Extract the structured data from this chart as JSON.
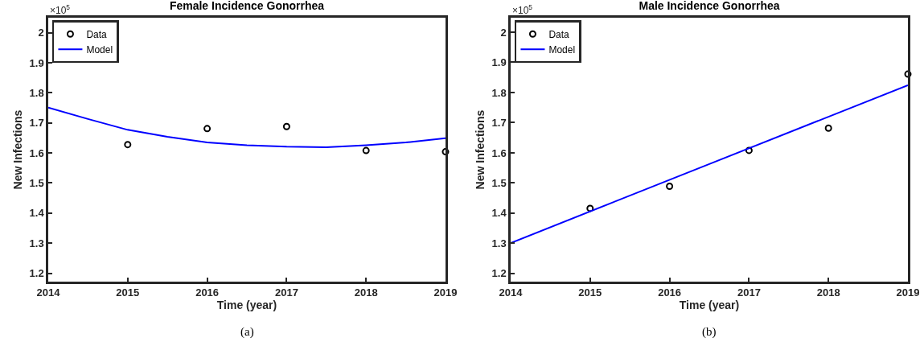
{
  "chart_data": [
    {
      "type": "scatter",
      "title": "Female Incidence Gonorrhea",
      "xlabel": "Time (year)",
      "ylabel": "New Infections",
      "annotations": [
        "×10$^{5}$",
        "(a)"
      ],
      "xlim": [
        2014,
        2019
      ],
      "xticks": [
        2014,
        2015,
        2016,
        2017,
        2018,
        2019
      ],
      "ylim": [
        1.172,
        2.05
      ],
      "yticks": [
        1.2,
        1.3,
        1.4,
        1.5,
        1.6,
        1.7,
        1.8,
        1.9,
        2
      ],
      "grid": false,
      "legend": "top left",
      "series": [
        {
          "name": "Data",
          "type": "scatter",
          "marker": "circle",
          "color": "#000000",
          "x": [
            2015,
            2016,
            2017,
            2018,
            2019
          ],
          "values": [
            1.628,
            1.681,
            1.688,
            1.608,
            1.604
          ]
        },
        {
          "name": "Model",
          "type": "line",
          "marker": "none",
          "line_style": "solid",
          "color": "#0000ff",
          "x": [
            2014,
            2014.5,
            2015,
            2015.5,
            2016,
            2016.5,
            2017,
            2017.5,
            2018,
            2018.5,
            2019
          ],
          "values": [
            1.751,
            1.713,
            1.677,
            1.654,
            1.635,
            1.626,
            1.621,
            1.619,
            1.626,
            1.635,
            1.649
          ]
        }
      ]
    },
    {
      "type": "scatter",
      "title": "Male Incidence Gonorrhea",
      "xlabel": "Time (year)",
      "ylabel": "New Infections",
      "annotations": [
        "×10$^{5}$",
        "(b)"
      ],
      "xlim": [
        2014,
        2019
      ],
      "xticks": [
        2014,
        2015,
        2016,
        2017,
        2018,
        2019
      ],
      "ylim": [
        1.173,
        2.048
      ],
      "yticks": [
        1.2,
        1.3,
        1.4,
        1.5,
        1.6,
        1.7,
        1.8,
        1.9,
        2
      ],
      "grid": false,
      "legend": "top left",
      "series": [
        {
          "name": "Data",
          "type": "scatter",
          "marker": "circle",
          "color": "#000000",
          "x": [
            2015,
            2016,
            2017,
            2018,
            2019
          ],
          "values": [
            1.416,
            1.489,
            1.608,
            1.682,
            1.861
          ]
        },
        {
          "name": "Model",
          "type": "line",
          "marker": "none",
          "line_style": "solid",
          "color": "#0000ff",
          "x": [
            2014,
            2016.5,
            2019
          ],
          "values": [
            1.301,
            1.563,
            1.824
          ]
        }
      ]
    }
  ]
}
